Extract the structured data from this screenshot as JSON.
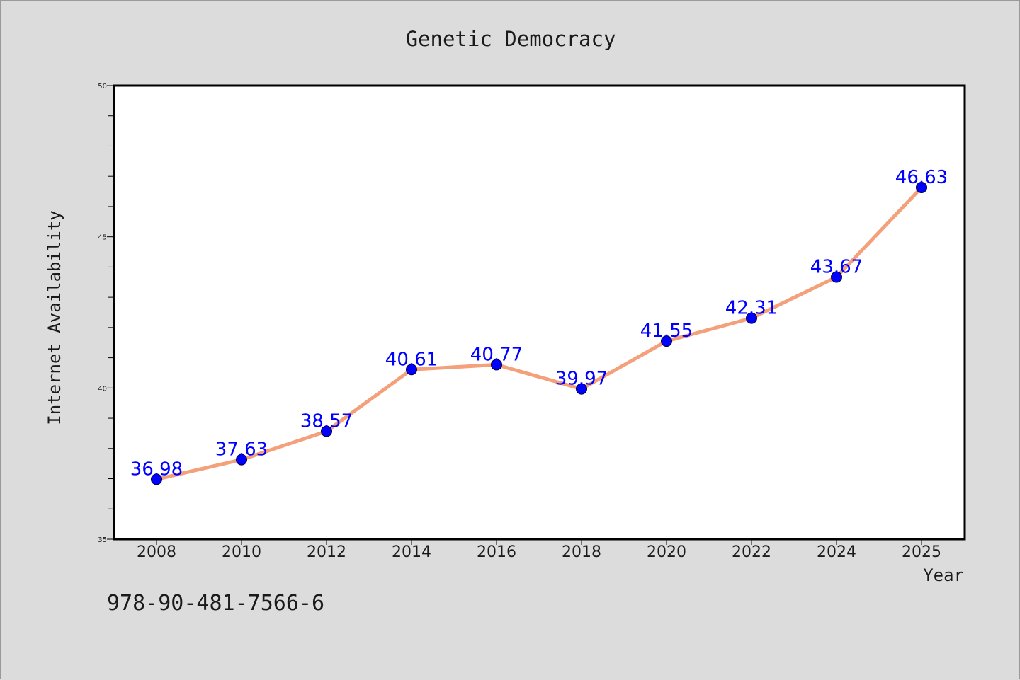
{
  "chart_data": {
    "type": "line",
    "title": "Genetic Democracy",
    "xlabel": "Year",
    "ylabel": "Internet Availability",
    "categories": [
      "2008",
      "2010",
      "2012",
      "2014",
      "2016",
      "2018",
      "2020",
      "2022",
      "2024",
      "2025"
    ],
    "values": [
      36.98,
      37.63,
      38.57,
      40.61,
      40.77,
      39.97,
      41.55,
      42.31,
      43.67,
      46.63
    ],
    "value_labels": [
      "36.98",
      "37.63",
      "38.57",
      "40.61",
      "40.77",
      "39.97",
      "41.55",
      "42.31",
      "43.67",
      "46.63"
    ],
    "ylim": [
      35,
      50
    ],
    "yticks": [
      "35",
      "40",
      "45",
      "50"
    ],
    "grid": false,
    "line_color": "#f4a07a",
    "marker_color": "#0000ff",
    "label_color": "#0000ff"
  },
  "footer": {
    "code": "978-90-481-7566-6"
  }
}
